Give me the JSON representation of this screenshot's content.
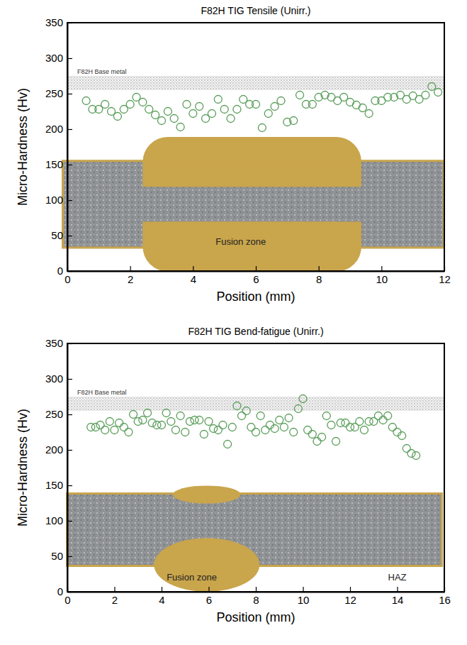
{
  "chart_data": [
    {
      "type": "scatter",
      "title": "F82H TIG Tensile (Unirr.)",
      "x_label": "Position (mm)",
      "y_label": "Micro-Hardness (Hv)",
      "x": [
        0.6,
        0.8,
        1.0,
        1.2,
        1.4,
        1.6,
        1.8,
        2.0,
        2.2,
        2.4,
        2.6,
        2.8,
        3.0,
        3.2,
        3.4,
        3.6,
        3.8,
        4.0,
        4.2,
        4.4,
        4.6,
        4.8,
        5.0,
        5.2,
        5.4,
        5.6,
        5.8,
        6.0,
        6.2,
        6.4,
        6.6,
        6.8,
        7.0,
        7.2,
        7.4,
        7.6,
        7.8,
        8.0,
        8.2,
        8.4,
        8.6,
        8.8,
        9.0,
        9.2,
        9.4,
        9.6,
        9.8,
        10.0,
        10.2,
        10.4,
        10.6,
        10.8,
        11.0,
        11.2,
        11.4,
        11.6,
        11.8
      ],
      "values": [
        240,
        228,
        228,
        235,
        225,
        218,
        228,
        235,
        245,
        238,
        228,
        220,
        212,
        225,
        215,
        203,
        235,
        222,
        232,
        215,
        222,
        242,
        228,
        215,
        228,
        242,
        235,
        235,
        202,
        222,
        232,
        240,
        210,
        212,
        248,
        235,
        235,
        245,
        248,
        245,
        240,
        245,
        238,
        234,
        230,
        222,
        240,
        240,
        245,
        245,
        248,
        242,
        247,
        242,
        248,
        260,
        252
      ],
      "xlim": [
        0,
        12
      ],
      "xticks": [
        0,
        2,
        4,
        6,
        8,
        10,
        12
      ],
      "ylim": [
        0,
        350
      ],
      "yticks": [
        0,
        50,
        100,
        150,
        200,
        250,
        300,
        350
      ],
      "color": "#5a9e5a",
      "marker": "circle",
      "grid": false,
      "base_metal_range": [
        255,
        275
      ],
      "annotations": [
        "F82H Base metal",
        "Fusion zone"
      ]
    },
    {
      "type": "scatter",
      "title": "F82H TIG Bend-fatigue (Unirr.)",
      "x_label": "Position (mm)",
      "y_label": "Micro-Hardness (Hv)",
      "x": [
        1.0,
        1.2,
        1.4,
        1.6,
        1.8,
        2.0,
        2.2,
        2.4,
        2.6,
        2.8,
        3.0,
        3.2,
        3.4,
        3.6,
        3.8,
        4.0,
        4.2,
        4.4,
        4.6,
        4.8,
        5.0,
        5.2,
        5.4,
        5.6,
        5.8,
        6.0,
        6.2,
        6.4,
        6.6,
        6.8,
        7.0,
        7.2,
        7.4,
        7.6,
        7.8,
        8.0,
        8.2,
        8.4,
        8.6,
        8.8,
        9.0,
        9.2,
        9.4,
        9.6,
        9.8,
        10.0,
        10.2,
        10.4,
        10.6,
        10.8,
        11.0,
        11.2,
        11.4,
        11.6,
        11.8,
        12.0,
        12.2,
        12.4,
        12.6,
        12.8,
        13.0,
        13.2,
        13.4,
        13.6,
        13.8,
        14.0,
        14.2,
        14.4,
        14.6,
        14.8
      ],
      "values": [
        232,
        232,
        235,
        228,
        240,
        228,
        238,
        232,
        225,
        250,
        240,
        242,
        252,
        238,
        235,
        235,
        252,
        240,
        228,
        248,
        225,
        240,
        242,
        242,
        222,
        240,
        230,
        228,
        235,
        208,
        232,
        262,
        248,
        255,
        232,
        225,
        248,
        228,
        235,
        230,
        242,
        232,
        245,
        225,
        258,
        272,
        228,
        222,
        212,
        218,
        248,
        235,
        212,
        238,
        238,
        232,
        232,
        240,
        228,
        240,
        240,
        248,
        242,
        248,
        232,
        225,
        220,
        202,
        195,
        192
      ],
      "xlim": [
        0,
        16
      ],
      "xticks": [
        0,
        2,
        4,
        6,
        8,
        10,
        12,
        14,
        16
      ],
      "ylim": [
        0,
        350
      ],
      "yticks": [
        0,
        50,
        100,
        150,
        200,
        250,
        300,
        350
      ],
      "color": "#5a9e5a",
      "marker": "circle",
      "grid": false,
      "base_metal_range": [
        255,
        275
      ],
      "annotations": [
        "F82H Base metal",
        "Fusion zone",
        "HAZ"
      ]
    }
  ]
}
